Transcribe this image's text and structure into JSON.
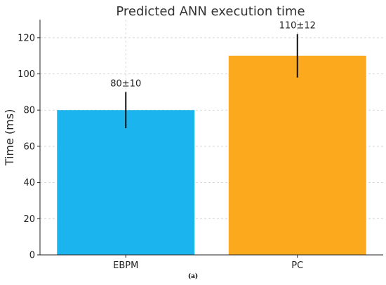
{
  "chart_data": {
    "type": "bar",
    "title": "Predicted ANN execution time",
    "xlabel": "",
    "ylabel": "Time (ms)",
    "categories": [
      "EBPM",
      "PC"
    ],
    "values": [
      80,
      110
    ],
    "errors": [
      10,
      12
    ],
    "data_labels": [
      "80±10",
      "110±12"
    ],
    "colors": [
      "#1CB4EF",
      "#FCA91E"
    ],
    "ylim": [
      0,
      130
    ],
    "yticks": [
      0,
      20,
      40,
      60,
      80,
      100,
      120
    ],
    "grid": true
  },
  "caption": "(a)"
}
